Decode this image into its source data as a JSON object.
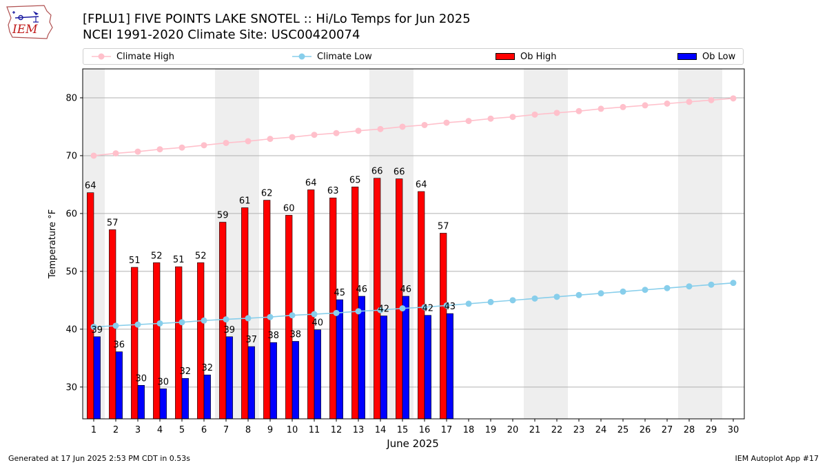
{
  "header": {
    "logo_text": "IEM",
    "title_line1": "[FPLU1] FIVE POINTS LAKE SNOTEL :: Hi/Lo Temps for Jun 2025",
    "title_line2": "NCEI 1991-2020 Climate Site: USC00420074"
  },
  "legend": {
    "climate_high": "Climate High",
    "climate_low": "Climate Low",
    "ob_high": "Ob High",
    "ob_low": "Ob Low"
  },
  "colors": {
    "climate_high": "#ffc0cb",
    "climate_low": "#87ceeb",
    "ob_high": "#ff0000",
    "ob_low": "#0000ff",
    "weekend_shade": "#eeeeee",
    "grid": "#b0b0b0"
  },
  "footer": {
    "left": "Generated at 17 Jun 2025 2:53 PM CDT in 0.53s",
    "right": "IEM Autoplot App #17"
  },
  "chart_data": {
    "type": "bar",
    "xlabel": "June 2025",
    "ylabel": "Temperature °F",
    "ylim": [
      24.5,
      85
    ],
    "yticks": [
      30,
      40,
      50,
      60,
      70,
      80
    ],
    "grid": "horizontal",
    "legend_position": "top",
    "days": [
      1,
      2,
      3,
      4,
      5,
      6,
      7,
      8,
      9,
      10,
      11,
      12,
      13,
      14,
      15,
      16,
      17,
      18,
      19,
      20,
      21,
      22,
      23,
      24,
      25,
      26,
      27,
      28,
      29,
      30
    ],
    "weekend_days": [
      1,
      7,
      8,
      14,
      15,
      21,
      22,
      28,
      29
    ],
    "ob_high": [
      63.6,
      57.2,
      50.7,
      51.5,
      50.8,
      51.5,
      58.5,
      61.0,
      62.3,
      59.7,
      64.1,
      62.7,
      64.6,
      66.1,
      66.0,
      63.8,
      56.6
    ],
    "ob_high_labels": [
      "64",
      "57",
      "51",
      "52",
      "51",
      "52",
      "59",
      "61",
      "62",
      "60",
      "64",
      "63",
      "65",
      "66",
      "66",
      "64",
      "57"
    ],
    "ob_low": [
      38.7,
      36.1,
      30.3,
      29.7,
      31.5,
      32.1,
      38.7,
      37.0,
      37.7,
      37.9,
      39.9,
      45.1,
      45.7,
      42.3,
      45.7,
      42.4,
      42.7
    ],
    "ob_low_labels": [
      "39",
      "36",
      "30",
      "30",
      "32",
      "32",
      "39",
      "37",
      "38",
      "38",
      "40",
      "45",
      "46",
      "42",
      "46",
      "42",
      "43"
    ],
    "climate_high": [
      70.0,
      70.4,
      70.7,
      71.1,
      71.4,
      71.8,
      72.2,
      72.5,
      72.9,
      73.2,
      73.6,
      73.9,
      74.3,
      74.6,
      75.0,
      75.3,
      75.7,
      76.0,
      76.4,
      76.7,
      77.1,
      77.4,
      77.7,
      78.1,
      78.4,
      78.7,
      79.0,
      79.3,
      79.6,
      79.9
    ],
    "climate_low": [
      40.4,
      40.6,
      40.8,
      41.0,
      41.2,
      41.5,
      41.7,
      41.9,
      42.1,
      42.4,
      42.6,
      42.8,
      43.1,
      43.3,
      43.6,
      43.8,
      44.1,
      44.4,
      44.7,
      45.0,
      45.3,
      45.6,
      45.9,
      46.2,
      46.5,
      46.8,
      47.1,
      47.4,
      47.7,
      48.0
    ]
  }
}
